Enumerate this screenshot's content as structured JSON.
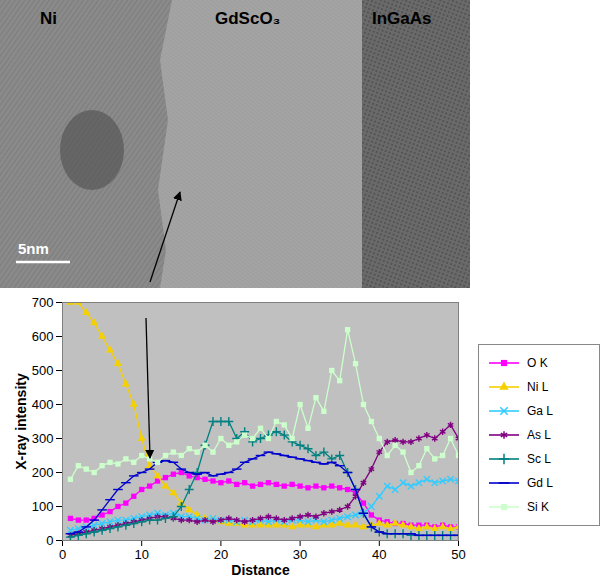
{
  "image": {
    "labels": [
      "Ni",
      "GdScO₃",
      "InGaAs"
    ],
    "scale_bar": "5nm"
  },
  "chart_data": {
    "type": "line",
    "x_label": "Distance",
    "y_label": "X-ray intensity",
    "xlim": [
      0,
      50
    ],
    "xticks": [
      0,
      10,
      20,
      30,
      40,
      50
    ],
    "ylim": [
      0,
      700
    ],
    "yticks": [
      0,
      100,
      200,
      300,
      400,
      500,
      600,
      700
    ],
    "grid": false,
    "legend": "right",
    "x": [
      1,
      2,
      3,
      4,
      5,
      6,
      7,
      8,
      9,
      10,
      11,
      12,
      13,
      14,
      15,
      16,
      17,
      18,
      19,
      20,
      21,
      22,
      23,
      24,
      25,
      26,
      27,
      28,
      29,
      30,
      31,
      32,
      33,
      34,
      35,
      36,
      37,
      38,
      39,
      40,
      41,
      42,
      43,
      44,
      45,
      46,
      47,
      48,
      49,
      50
    ],
    "series": [
      {
        "name": "O K",
        "color": "#ff00ff",
        "marker": "square",
        "values": [
          65,
          60,
          60,
          65,
          75,
          85,
          100,
          110,
          130,
          150,
          160,
          175,
          185,
          195,
          200,
          190,
          185,
          180,
          175,
          170,
          175,
          165,
          170,
          160,
          165,
          170,
          165,
          160,
          165,
          160,
          155,
          160,
          155,
          160,
          155,
          150,
          140,
          110,
          75,
          60,
          55,
          50,
          50,
          45,
          45,
          45,
          40,
          45,
          40,
          40
        ]
      },
      {
        "name": "Ni L",
        "color": "#f5d000",
        "marker": "triangle",
        "values": [
          700,
          700,
          670,
          640,
          600,
          560,
          520,
          460,
          400,
          300,
          220,
          190,
          160,
          140,
          110,
          90,
          75,
          65,
          60,
          55,
          50,
          50,
          45,
          45,
          45,
          45,
          45,
          45,
          40,
          45,
          45,
          40,
          45,
          45,
          50,
          45,
          45,
          40,
          45,
          50,
          45,
          50,
          45,
          40,
          35,
          40,
          35,
          40,
          35,
          40
        ]
      },
      {
        "name": "Ga L",
        "color": "#33ccff",
        "marker": "x",
        "values": [
          30,
          35,
          40,
          45,
          50,
          55,
          60,
          60,
          65,
          70,
          75,
          80,
          75,
          80,
          70,
          70,
          65,
          60,
          65,
          60,
          60,
          55,
          60,
          55,
          60,
          55,
          60,
          55,
          60,
          60,
          55,
          60,
          55,
          60,
          65,
          70,
          75,
          80,
          100,
          130,
          160,
          150,
          170,
          160,
          170,
          180,
          170,
          175,
          180,
          175
        ]
      },
      {
        "name": "As L",
        "color": "#800080",
        "marker": "asterisk",
        "values": [
          15,
          20,
          25,
          30,
          35,
          40,
          45,
          50,
          55,
          60,
          65,
          70,
          70,
          65,
          60,
          60,
          55,
          60,
          55,
          60,
          65,
          60,
          55,
          60,
          65,
          70,
          65,
          60,
          65,
          70,
          75,
          70,
          80,
          85,
          90,
          100,
          130,
          170,
          210,
          260,
          290,
          295,
          290,
          290,
          300,
          310,
          300,
          320,
          340,
          300
        ]
      },
      {
        "name": "Sc L",
        "color": "#008080",
        "marker": "plus",
        "values": [
          10,
          15,
          20,
          25,
          30,
          35,
          40,
          45,
          50,
          55,
          60,
          60,
          65,
          70,
          100,
          150,
          200,
          280,
          350,
          350,
          350,
          300,
          320,
          290,
          300,
          310,
          320,
          310,
          290,
          280,
          270,
          250,
          260,
          240,
          250,
          200,
          150,
          80,
          40,
          25,
          20,
          20,
          20,
          15,
          15,
          15,
          15,
          15,
          15,
          15
        ]
      },
      {
        "name": "Gd L",
        "color": "#0000cc",
        "marker": "dash",
        "values": [
          20,
          25,
          40,
          60,
          90,
          120,
          150,
          170,
          190,
          200,
          210,
          230,
          235,
          230,
          210,
          200,
          195,
          200,
          190,
          195,
          200,
          210,
          230,
          240,
          250,
          260,
          255,
          250,
          245,
          240,
          235,
          230,
          225,
          230,
          220,
          200,
          150,
          80,
          40,
          25,
          20,
          20,
          20,
          20,
          15,
          15,
          15,
          15,
          15,
          15
        ]
      },
      {
        "name": "Si K",
        "color": "#ccffcc",
        "marker": "square",
        "values": [
          180,
          220,
          210,
          200,
          220,
          230,
          225,
          240,
          230,
          250,
          240,
          230,
          250,
          260,
          250,
          270,
          260,
          280,
          260,
          300,
          280,
          290,
          310,
          300,
          330,
          300,
          350,
          340,
          300,
          400,
          330,
          420,
          380,
          500,
          470,
          620,
          520,
          400,
          350,
          300,
          250,
          280,
          260,
          200,
          220,
          270,
          240,
          250,
          300,
          250
        ]
      }
    ]
  }
}
